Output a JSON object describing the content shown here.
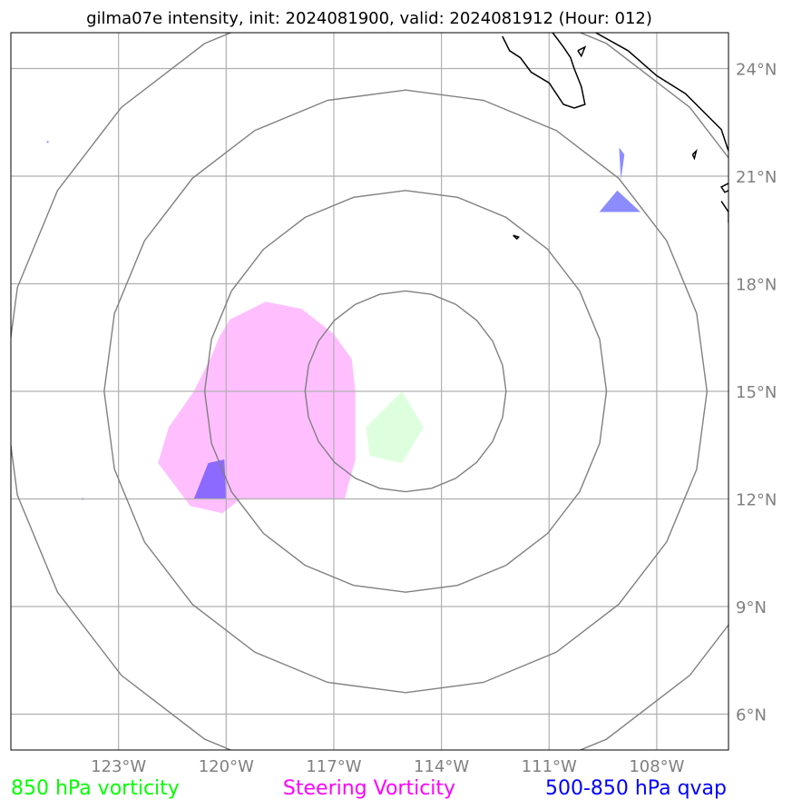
{
  "title": "gilma07e intensity, init: 2024081900, valid: 2024081912 (Hour: 012)",
  "map": {
    "lon_range": [
      -126.0,
      -106.0
    ],
    "lat_range": [
      5.0,
      25.0
    ],
    "lon_ticks": [
      {
        "value": -123,
        "label": "123°W"
      },
      {
        "value": -120,
        "label": "120°W"
      },
      {
        "value": -117,
        "label": "117°W"
      },
      {
        "value": -114,
        "label": "114°W"
      },
      {
        "value": -111,
        "label": "111°W"
      },
      {
        "value": -108,
        "label": "108°W"
      }
    ],
    "lat_ticks": [
      {
        "value": 6,
        "label": "6°N"
      },
      {
        "value": 9,
        "label": "9°N"
      },
      {
        "value": 12,
        "label": "12°N"
      },
      {
        "value": 15,
        "label": "15°N"
      },
      {
        "value": 18,
        "label": "18°N"
      },
      {
        "value": 21,
        "label": "21°N"
      },
      {
        "value": 24,
        "label": "24°N"
      }
    ],
    "grid": true,
    "storm_center": {
      "lon": -115.0,
      "lat": 15.0
    },
    "range_rings_deg": [
      2.8,
      5.6,
      8.4,
      11.2
    ],
    "colors": {
      "grid": "#b0b0b0",
      "rings": "#808080",
      "coast": "#000000",
      "vorticity_850": "#00ff00",
      "steering_vorticity": "#ff00ff",
      "qvap": "#0000ff"
    },
    "fields": {
      "steering_vorticity": [
        [
          [
            -119.9,
            17.0
          ],
          [
            -118.9,
            17.5
          ],
          [
            -117.9,
            17.3
          ],
          [
            -117.0,
            16.6
          ],
          [
            -116.5,
            15.9
          ],
          [
            -116.4,
            15.0
          ],
          [
            -116.4,
            13.1
          ],
          [
            -116.7,
            12.0
          ],
          [
            -118.5,
            12.0
          ],
          [
            -119.6,
            12.0
          ],
          [
            -120.1,
            11.6
          ],
          [
            -121.0,
            11.8
          ],
          [
            -121.9,
            13.0
          ],
          [
            -121.6,
            14.0
          ],
          [
            -120.9,
            15.0
          ],
          [
            -120.4,
            16.0
          ],
          [
            -120.2,
            16.5
          ]
        ]
      ],
      "vorticity_850": [
        [
          [
            -116.1,
            14.0
          ],
          [
            -115.1,
            15.0
          ],
          [
            -114.5,
            14.0
          ],
          [
            -115.1,
            13.0
          ],
          [
            -116.0,
            13.2
          ]
        ]
      ],
      "qvap": [
        [
          [
            -120.9,
            12.0
          ],
          [
            -120.5,
            13.0
          ],
          [
            -120.05,
            13.1
          ],
          [
            -120.0,
            12.0
          ]
        ],
        [
          [
            -109.6,
            20.0
          ],
          [
            -109.1,
            20.6
          ],
          [
            -108.45,
            20.0
          ]
        ],
        [
          [
            -109.05,
            21.8
          ],
          [
            -108.9,
            21.6
          ],
          [
            -109.0,
            20.9
          ]
        ],
        [
          [
            -125.0,
            21.98
          ],
          [
            -124.95,
            21.98
          ],
          [
            -124.95,
            21.93
          ],
          [
            -125.0,
            21.93
          ]
        ],
        [
          [
            -124.02,
            12.03
          ],
          [
            -123.98,
            12.03
          ],
          [
            -123.98,
            11.97
          ],
          [
            -124.02,
            11.97
          ]
        ]
      ]
    },
    "coastlines": [
      [
        [
          -112.3,
          24.9
        ],
        [
          -112.1,
          24.5
        ],
        [
          -111.8,
          24.3
        ],
        [
          -111.5,
          23.9
        ],
        [
          -111.0,
          23.6
        ],
        [
          -110.6,
          23.0
        ],
        [
          -110.3,
          22.9
        ],
        [
          -110.0,
          23.0
        ],
        [
          -110.1,
          23.5
        ],
        [
          -110.3,
          24.0
        ],
        [
          -110.4,
          24.3
        ],
        [
          -110.6,
          24.6
        ],
        [
          -110.9,
          25.0
        ]
      ],
      [
        [
          -109.7,
          25.0
        ],
        [
          -108.8,
          24.5
        ],
        [
          -108.0,
          23.8
        ],
        [
          -107.2,
          23.3
        ],
        [
          -106.6,
          22.7
        ],
        [
          -106.2,
          22.3
        ],
        [
          -106.0,
          21.7
        ]
      ],
      [
        [
          -110.2,
          24.5
        ],
        [
          -110.0,
          24.6
        ],
        [
          -110.1,
          24.35
        ],
        [
          -110.2,
          24.5
        ]
      ],
      [
        [
          -107.0,
          21.6
        ],
        [
          -106.9,
          21.7
        ],
        [
          -106.95,
          21.5
        ],
        [
          -107.0,
          21.6
        ]
      ],
      [
        [
          -106.0,
          20.8
        ],
        [
          -106.2,
          20.7
        ],
        [
          -106.1,
          20.55
        ],
        [
          -106.0,
          20.6
        ]
      ],
      [
        [
          -106.2,
          20.3
        ],
        [
          -106.0,
          20.0
        ],
        [
          -106.0,
          19.7
        ]
      ],
      [
        [
          -112.0,
          19.35
        ],
        [
          -111.9,
          19.25
        ],
        [
          -111.85,
          19.3
        ],
        [
          -112.0,
          19.35
        ]
      ]
    ]
  },
  "legend": [
    {
      "label": "850 hPa vorticity",
      "color": "#00ff00"
    },
    {
      "label": "Steering Vorticity",
      "color": "#ff00ff"
    },
    {
      "label": "500-850 hPa qvap",
      "color": "#0000ff"
    }
  ]
}
